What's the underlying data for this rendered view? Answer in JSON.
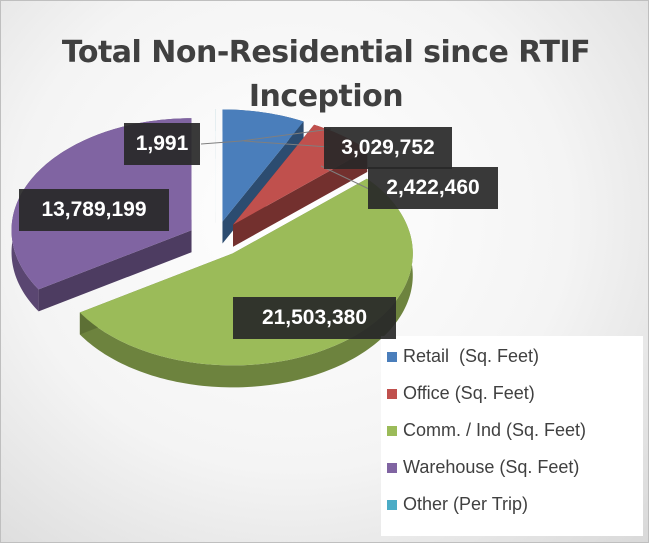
{
  "chart_data": {
    "type": "pie",
    "title": "Total Non-Residential since RTIF Inception",
    "categories": [
      "Retail  (Sq. Feet)",
      "Office (Sq. Feet)",
      "Comm. / Ind (Sq. Feet)",
      "Warehouse (Sq. Feet)",
      "Other (Per Trip)"
    ],
    "values": [
      3029752,
      2422460,
      21503380,
      13789199,
      1991
    ],
    "value_labels": [
      "3,029,752",
      "2,422,460",
      "21,503,380",
      "13,789,199",
      "1,991"
    ],
    "colors": [
      "#4a7ebb",
      "#c0504d",
      "#9bbb59",
      "#8064a2",
      "#4bacc6"
    ],
    "exploded": true,
    "three_d": true,
    "legend": "bottom-right"
  }
}
